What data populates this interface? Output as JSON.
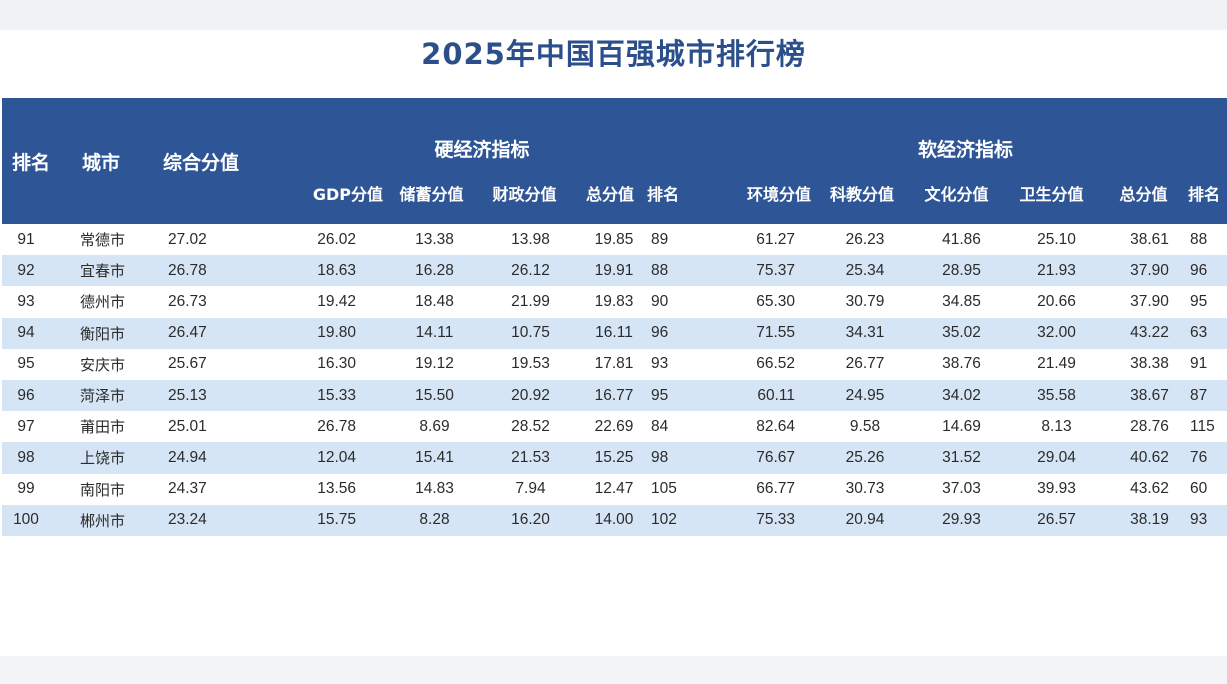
{
  "title": "2025年中国百强城市排行榜",
  "header": {
    "rank": "排名",
    "city": "城市",
    "composite": "综合分值",
    "hard_group": "硬经济指标",
    "soft_group": "软经济指标",
    "hard_cols": [
      "GDP分值",
      "储蓄分值",
      "财政分值",
      "总分值",
      "排名"
    ],
    "soft_cols": [
      "环境分值",
      "科教分值",
      "文化分值",
      "卫生分值",
      "总分值",
      "排名"
    ]
  },
  "rows": [
    {
      "rank": "91",
      "city": "常德市",
      "composite": "27.02",
      "gdp": "26.02",
      "savings": "13.38",
      "fiscal": "13.98",
      "hard_total": "19.85",
      "hard_rank": "89",
      "env": "61.27",
      "edu": "26.23",
      "culture": "41.86",
      "health": "25.10",
      "soft_total": "38.61",
      "soft_rank": "88"
    },
    {
      "rank": "92",
      "city": "宜春市",
      "composite": "26.78",
      "gdp": "18.63",
      "savings": "16.28",
      "fiscal": "26.12",
      "hard_total": "19.91",
      "hard_rank": "88",
      "env": "75.37",
      "edu": "25.34",
      "culture": "28.95",
      "health": "21.93",
      "soft_total": "37.90",
      "soft_rank": "96"
    },
    {
      "rank": "93",
      "city": "德州市",
      "composite": "26.73",
      "gdp": "19.42",
      "savings": "18.48",
      "fiscal": "21.99",
      "hard_total": "19.83",
      "hard_rank": "90",
      "env": "65.30",
      "edu": "30.79",
      "culture": "34.85",
      "health": "20.66",
      "soft_total": "37.90",
      "soft_rank": "95"
    },
    {
      "rank": "94",
      "city": "衡阳市",
      "composite": "26.47",
      "gdp": "19.80",
      "savings": "14.11",
      "fiscal": "10.75",
      "hard_total": "16.11",
      "hard_rank": "96",
      "env": "71.55",
      "edu": "34.31",
      "culture": "35.02",
      "health": "32.00",
      "soft_total": "43.22",
      "soft_rank": "63"
    },
    {
      "rank": "95",
      "city": "安庆市",
      "composite": "25.67",
      "gdp": "16.30",
      "savings": "19.12",
      "fiscal": "19.53",
      "hard_total": "17.81",
      "hard_rank": "93",
      "env": "66.52",
      "edu": "26.77",
      "culture": "38.76",
      "health": "21.49",
      "soft_total": "38.38",
      "soft_rank": "91"
    },
    {
      "rank": "96",
      "city": "菏泽市",
      "composite": "25.13",
      "gdp": "15.33",
      "savings": "15.50",
      "fiscal": "20.92",
      "hard_total": "16.77",
      "hard_rank": "95",
      "env": "60.11",
      "edu": "24.95",
      "culture": "34.02",
      "health": "35.58",
      "soft_total": "38.67",
      "soft_rank": "87"
    },
    {
      "rank": "97",
      "city": "莆田市",
      "composite": "25.01",
      "gdp": "26.78",
      "savings": "8.69",
      "fiscal": "28.52",
      "hard_total": "22.69",
      "hard_rank": "84",
      "env": "82.64",
      "edu": "9.58",
      "culture": "14.69",
      "health": "8.13",
      "soft_total": "28.76",
      "soft_rank": "115"
    },
    {
      "rank": "98",
      "city": "上饶市",
      "composite": "24.94",
      "gdp": "12.04",
      "savings": "15.41",
      "fiscal": "21.53",
      "hard_total": "15.25",
      "hard_rank": "98",
      "env": "76.67",
      "edu": "25.26",
      "culture": "31.52",
      "health": "29.04",
      "soft_total": "40.62",
      "soft_rank": "76"
    },
    {
      "rank": "99",
      "city": "南阳市",
      "composite": "24.37",
      "gdp": "13.56",
      "savings": "14.83",
      "fiscal": "7.94",
      "hard_total": "12.47",
      "hard_rank": "105",
      "env": "66.77",
      "edu": "30.73",
      "culture": "37.03",
      "health": "39.93",
      "soft_total": "43.62",
      "soft_rank": "60"
    },
    {
      "rank": "100",
      "city": "郴州市",
      "composite": "23.24",
      "gdp": "15.75",
      "savings": "8.28",
      "fiscal": "16.20",
      "hard_total": "14.00",
      "hard_rank": "102",
      "env": "75.33",
      "edu": "20.94",
      "culture": "29.93",
      "health": "26.57",
      "soft_total": "38.19",
      "soft_rank": "93"
    }
  ]
}
